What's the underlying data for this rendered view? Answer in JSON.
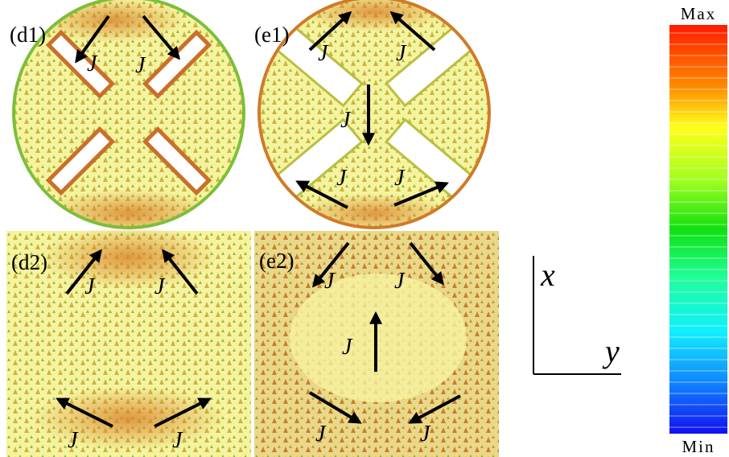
{
  "panels": [
    {
      "label": "(d1)",
      "currents": [
        "J",
        "J"
      ]
    },
    {
      "label": "(e1)",
      "currents": [
        "J",
        "J",
        "J",
        "J",
        "J"
      ]
    },
    {
      "label": "(d2)",
      "currents": [
        "J",
        "J",
        "J",
        "J"
      ]
    },
    {
      "label": "(e2)",
      "currents": [
        "J",
        "J",
        "J",
        "J",
        "J"
      ]
    }
  ],
  "axes": {
    "vertical": "x",
    "horizontal": "y"
  },
  "colorbar": {
    "max": "Max",
    "min": "Min"
  }
}
